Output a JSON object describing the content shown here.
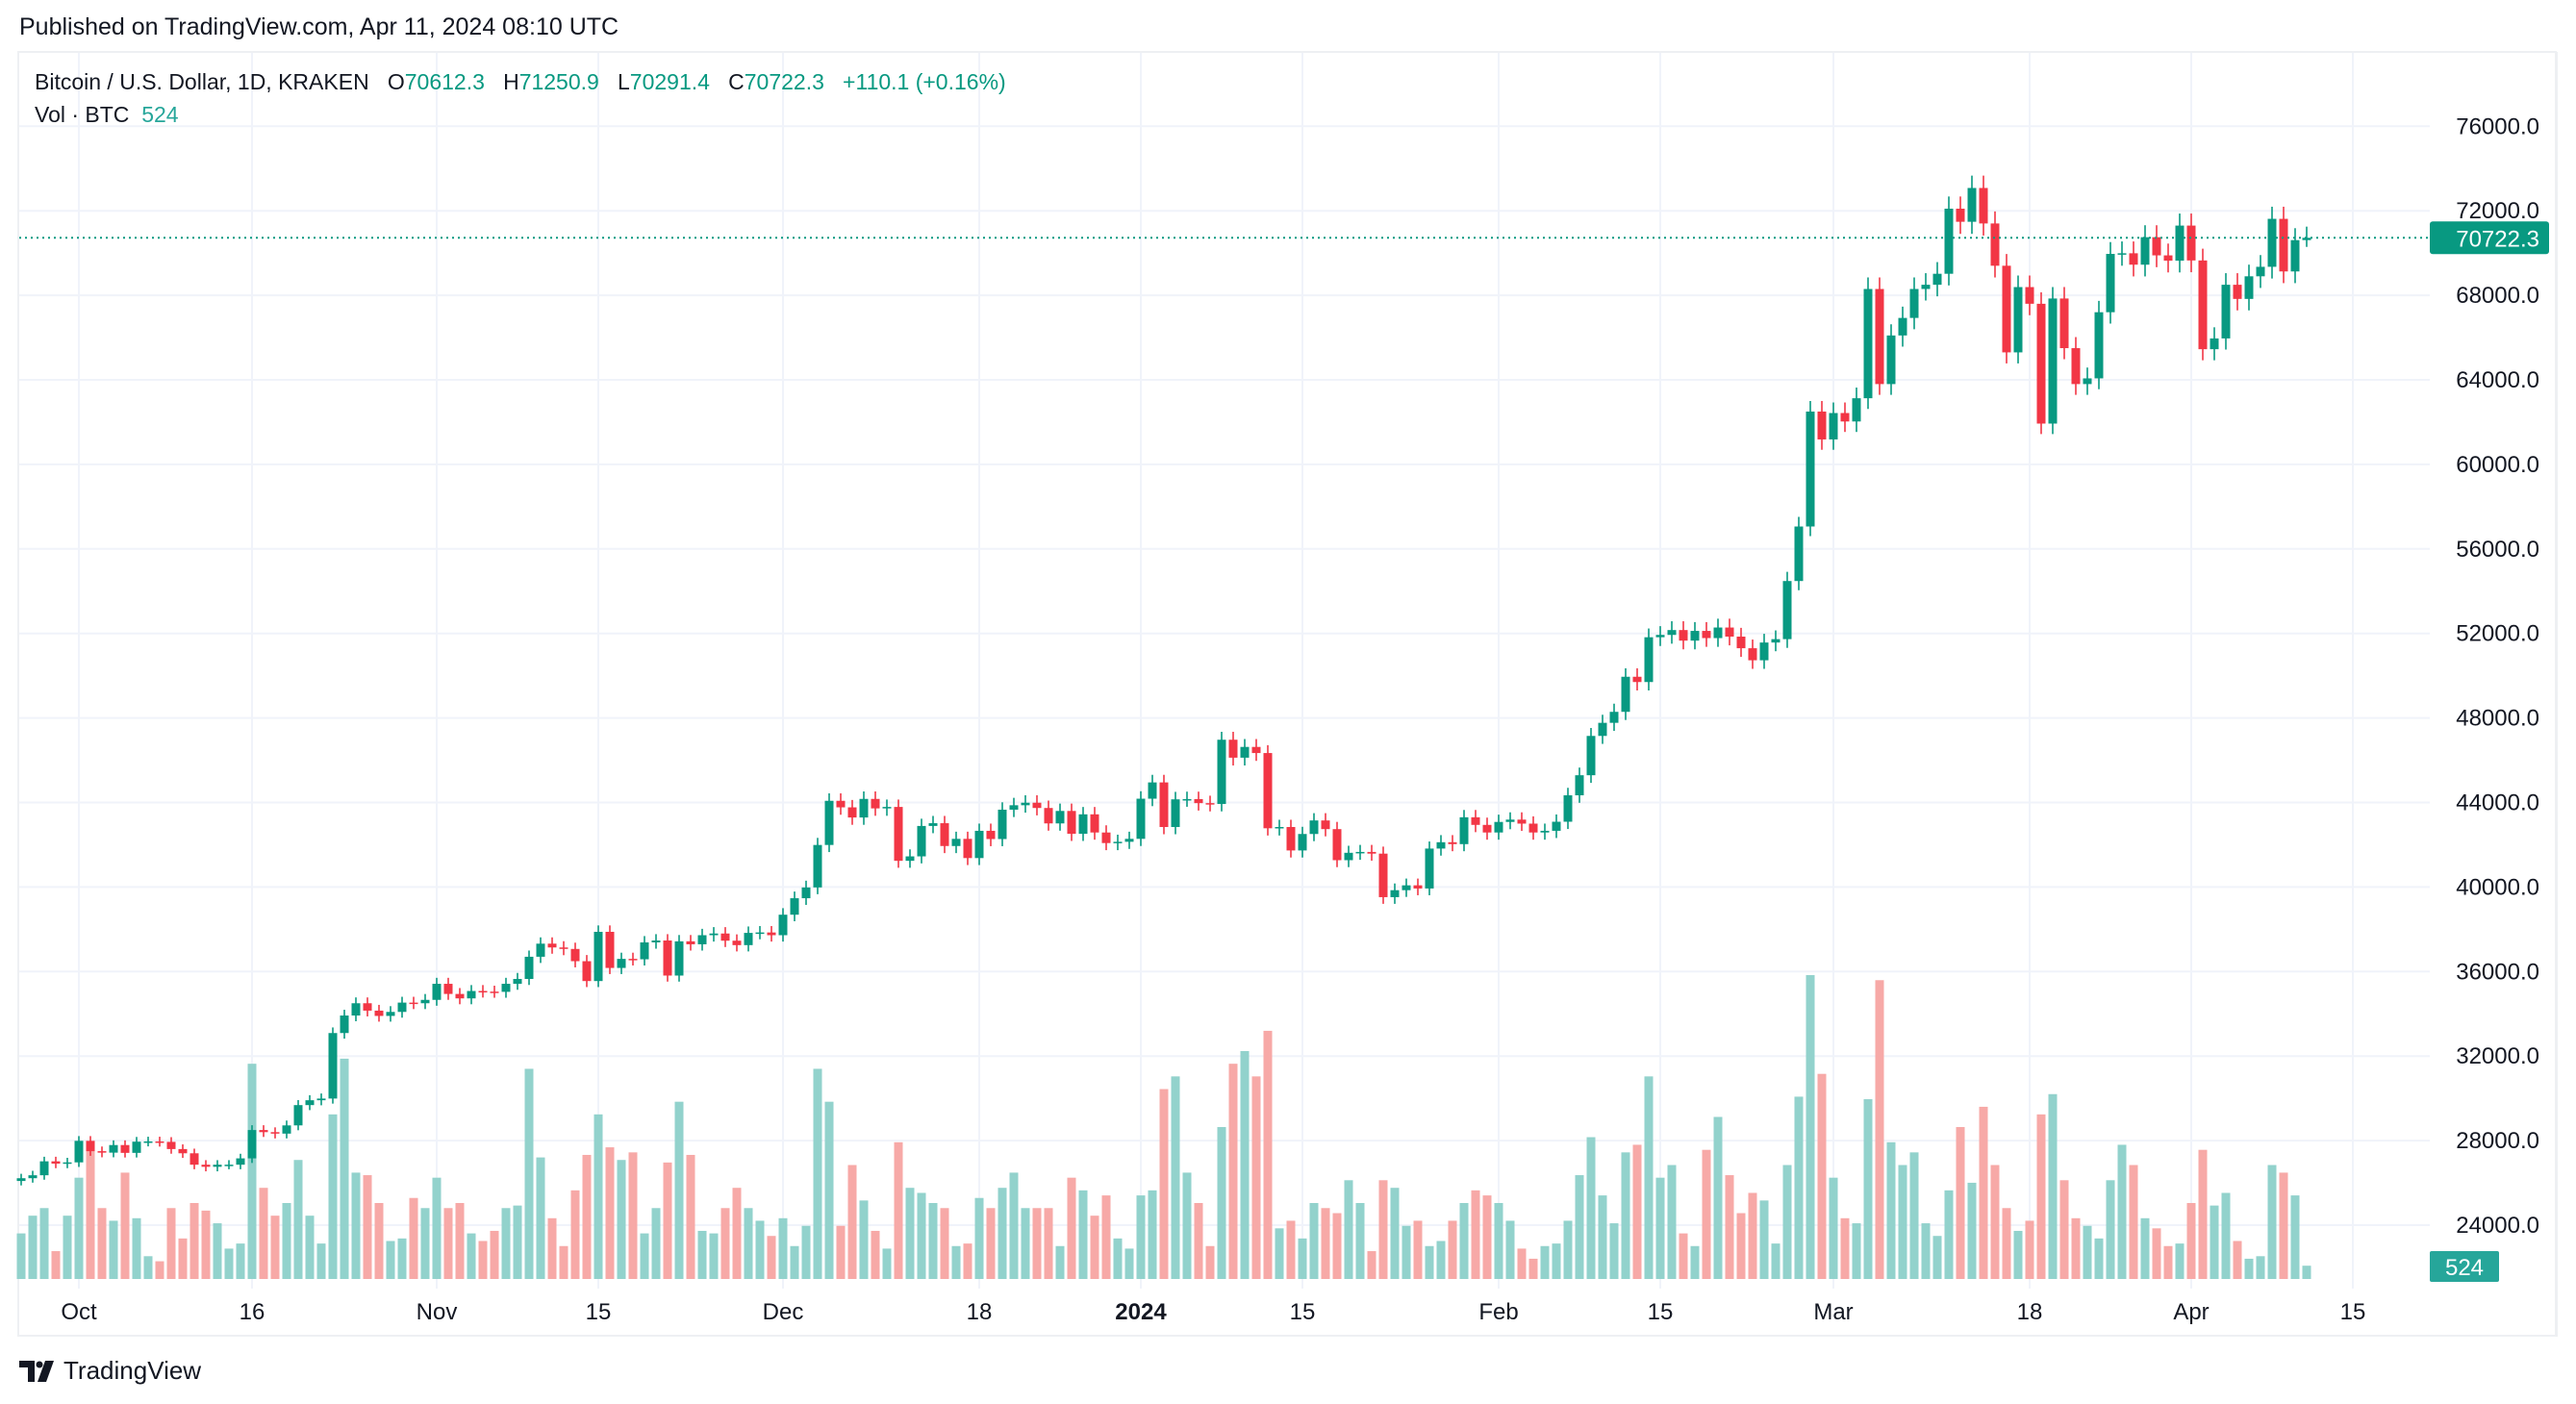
{
  "header": {
    "published": "Published on TradingView.com, Apr 11, 2024 08:10 UTC"
  },
  "legend": {
    "symbol": "Bitcoin / U.S. Dollar, 1D, KRAKEN",
    "o_label": "O",
    "o": "70612.3",
    "h_label": "H",
    "h": "71250.9",
    "l_label": "L",
    "l": "70291.4",
    "c_label": "C",
    "c": "70722.3",
    "change": "+110.1 (+0.16%)",
    "vol_label": "Vol · BTC",
    "vol": "524"
  },
  "footer": {
    "brand": "TradingView"
  },
  "colors": {
    "up": "#089981",
    "down": "#F23645",
    "vol_up": "#92D2CC",
    "vol_down": "#F7A9A7",
    "last_price": "#089981",
    "vol_badge": "#26A69A"
  },
  "chart_data": {
    "type": "candlestick",
    "start_date": "2023-09-26",
    "interval": "1D",
    "ylim": [
      22000,
      78000
    ],
    "y_ticks": [
      "76000.0",
      "72000.0",
      "68000.0",
      "64000.0",
      "60000.0",
      "56000.0",
      "52000.0",
      "48000.0",
      "44000.0",
      "40000.0",
      "36000.0",
      "32000.0",
      "28000.0",
      "24000.0"
    ],
    "last_price_label": "70722.3",
    "last_volume_label": "524",
    "x_labels": [
      {
        "label": "Oct",
        "date": "2023-10-01"
      },
      {
        "label": "16",
        "date": "2023-10-16"
      },
      {
        "label": "Nov",
        "date": "2023-11-01"
      },
      {
        "label": "15",
        "date": "2023-11-15"
      },
      {
        "label": "Dec",
        "date": "2023-12-01"
      },
      {
        "label": "18",
        "date": "2023-12-18"
      },
      {
        "label": "2024",
        "date": "2024-01-01",
        "bold": true
      },
      {
        "label": "15",
        "date": "2024-01-15"
      },
      {
        "label": "Feb",
        "date": "2024-02-01"
      },
      {
        "label": "15",
        "date": "2024-02-15"
      },
      {
        "label": "Mar",
        "date": "2024-03-01"
      },
      {
        "label": "18",
        "date": "2024-03-18"
      },
      {
        "label": "Apr",
        "date": "2024-04-01"
      },
      {
        "label": "15",
        "date": "2024-04-15"
      }
    ],
    "last_candle": {
      "open": 70612.3,
      "high": 71250.9,
      "low": 70291.4,
      "close": 70722.3
    },
    "close": [
      26220,
      26360,
      27020,
      26910,
      26970,
      27990,
      27500,
      27430,
      27790,
      27420,
      27950,
      27960,
      27940,
      27600,
      27400,
      26860,
      26760,
      26860,
      26860,
      27160,
      28500,
      28400,
      28330,
      28720,
      29680,
      29910,
      29990,
      33090,
      33920,
      34500,
      34150,
      33900,
      34090,
      34530,
      34500,
      34660,
      35420,
      34940,
      34730,
      35080,
      35050,
      35040,
      35420,
      35650,
      36700,
      37320,
      37140,
      37070,
      36490,
      35550,
      37880,
      36170,
      36600,
      36580,
      37380,
      37470,
      35810,
      37430,
      37290,
      37720,
      37800,
      37460,
      37250,
      37830,
      37850,
      37720,
      38690,
      39470,
      39980,
      41990,
      44080,
      43770,
      43290,
      44170,
      43720,
      43790,
      41240,
      41450,
      42890,
      43020,
      41940,
      42280,
      41370,
      42660,
      42270,
      43660,
      43870,
      43990,
      43740,
      43010,
      43600,
      42520,
      43440,
      42580,
      42080,
      42140,
      42280,
      44180,
      44950,
      42840,
      44150,
      44160,
      43970,
      43930,
      46970,
      46120,
      46630,
      46340,
      42780,
      42840,
      41730,
      42510,
      43150,
      42740,
      41270,
      41620,
      41660,
      41580,
      39520,
      39850,
      40080,
      39930,
      41820,
      42120,
      42030,
      43300,
      42940,
      42580,
      43080,
      43190,
      43000,
      42580,
      42660,
      43090,
      44340,
      45290,
      47150,
      47770,
      48290,
      49950,
      49700,
      51820,
      51930,
      52160,
      51660,
      52120,
      51780,
      52280,
      51850,
      51300,
      50730,
      51570,
      51730,
      54480,
      57060,
      62500,
      61180,
      62430,
      62030,
      63130,
      68300,
      63800,
      66100,
      66930,
      68300,
      68500,
      69020,
      72100,
      71480,
      73080,
      71400,
      69400,
      65300,
      68390,
      67600,
      61930,
      67850,
      65500,
      63800,
      64070,
      67200,
      69960,
      69990,
      69450,
      70750,
      69890,
      69640,
      71300,
      69650,
      65450,
      65960,
      68500,
      67830,
      68900,
      69350,
      71620,
      69130,
      70612.3,
      70722.3
    ],
    "volume": [
      1800,
      2500,
      2800,
      1100,
      2500,
      4000,
      5400,
      2800,
      2300,
      4200,
      2400,
      900,
      700,
      2800,
      1600,
      3000,
      2700,
      2200,
      1200,
      1400,
      8500,
      3600,
      2500,
      3000,
      4700,
      2500,
      1400,
      6500,
      8700,
      4200,
      4100,
      3000,
      1500,
      1600,
      3200,
      2800,
      4000,
      2800,
      3000,
      1800,
      1500,
      1900,
      2800,
      2900,
      8300,
      4800,
      2400,
      1300,
      3500,
      4900,
      6500,
      5200,
      4700,
      5000,
      1800,
      2800,
      4600,
      7000,
      4900,
      1900,
      1800,
      2800,
      3600,
      2800,
      2300,
      1700,
      2400,
      1300,
      2100,
      8300,
      7000,
      2100,
      4500,
      3100,
      1900,
      1200,
      5400,
      3600,
      3400,
      3000,
      2800,
      1300,
      1400,
      3200,
      2800,
      3600,
      4200,
      2800,
      2800,
      2800,
      1300,
      4000,
      3500,
      2500,
      3300,
      1600,
      1200,
      3300,
      3500,
      7500,
      8000,
      4200,
      3000,
      1300,
      6000,
      8500,
      9000,
      8000,
      9800,
      2000,
      2300,
      1600,
      3000,
      2800,
      2600,
      3900,
      3000,
      1100,
      3900,
      3600,
      2100,
      2300,
      1300,
      1500,
      2300,
      3000,
      3500,
      3300,
      3000,
      2300,
      1200,
      800,
      1300,
      1400,
      2300,
      4100,
      5600,
      3300,
      2200,
      5000,
      5300,
      8000,
      4000,
      4500,
      1800,
      1300,
      5100,
      6400,
      4100,
      2600,
      3400,
      3100,
      1400,
      4500,
      7200,
      12000,
      8100,
      4000,
      2400,
      2200,
      7100,
      11800,
      5400,
      4500,
      5000,
      2200,
      1700,
      3500,
      6000,
      3800,
      6800,
      4500,
      2800,
      1900,
      2300,
      6500,
      7300,
      3900,
      2400,
      2100,
      1600,
      3900,
      5300,
      4500,
      2400,
      2000,
      1300,
      1400,
      3000,
      5100,
      2900,
      3400,
      1500,
      800,
      900,
      4500,
      4200,
      3300,
      524
    ]
  }
}
